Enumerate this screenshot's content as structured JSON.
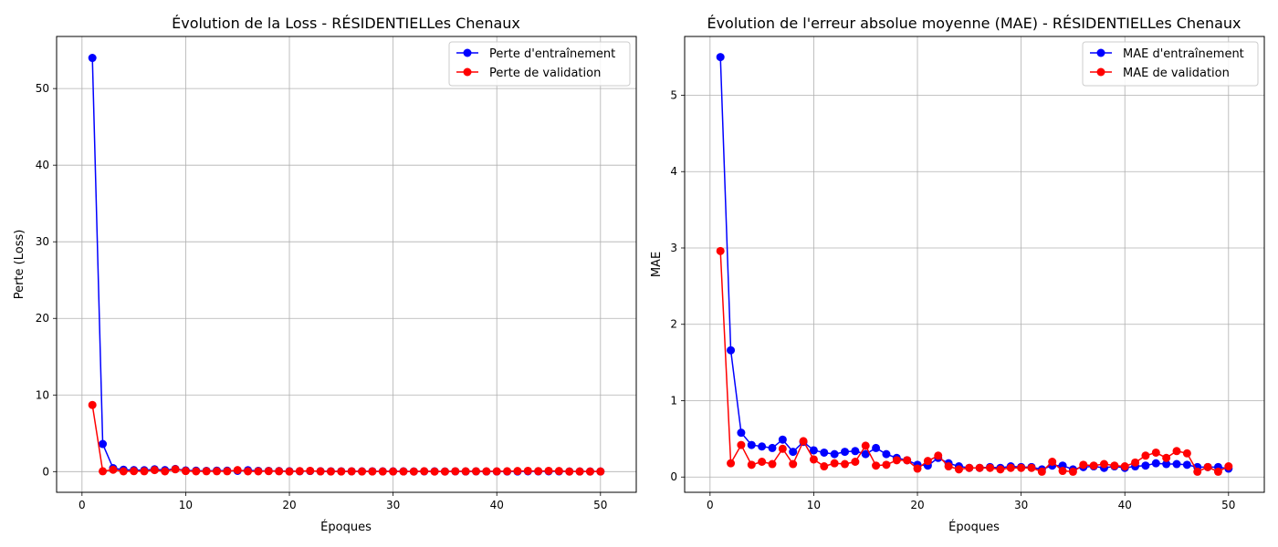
{
  "chart_data": [
    {
      "type": "line",
      "title": "Évolution de la Loss - RÉSIDENTIELLes Chenaux",
      "xlabel": "Époques",
      "ylabel": "Perte (Loss)",
      "xlim": [
        -2.45,
        53.45
      ],
      "ylim": [
        -2.7,
        56.8
      ],
      "xticks": [
        0,
        10,
        20,
        30,
        40,
        50
      ],
      "yticks": [
        0,
        10,
        20,
        30,
        40,
        50
      ],
      "grid": true,
      "legend_position": "top-right",
      "x": [
        1,
        2,
        3,
        4,
        5,
        6,
        7,
        8,
        9,
        10,
        11,
        12,
        13,
        14,
        15,
        16,
        17,
        18,
        19,
        20,
        21,
        22,
        23,
        24,
        25,
        26,
        27,
        28,
        29,
        30,
        31,
        32,
        33,
        34,
        35,
        36,
        37,
        38,
        39,
        40,
        41,
        42,
        43,
        44,
        45,
        46,
        47,
        48,
        49,
        50
      ],
      "series": [
        {
          "name": "Perte d'entraînement",
          "color": "#0000ff",
          "values": [
            54.0,
            3.6,
            0.45,
            0.25,
            0.2,
            0.18,
            0.3,
            0.2,
            0.35,
            0.15,
            0.12,
            0.1,
            0.13,
            0.12,
            0.1,
            0.18,
            0.1,
            0.1,
            0.08,
            0.05,
            0.05,
            0.08,
            0.05,
            0.04,
            0.04,
            0.04,
            0.03,
            0.04,
            0.03,
            0.03,
            0.03,
            0.02,
            0.03,
            0.03,
            0.02,
            0.03,
            0.02,
            0.03,
            0.02,
            0.02,
            0.02,
            0.02,
            0.04,
            0.03,
            0.04,
            0.03,
            0.02,
            0.02,
            0.02,
            0.02
          ]
        },
        {
          "name": "Perte de validation",
          "color": "#ff0000",
          "values": [
            8.7,
            0.05,
            0.25,
            0.04,
            0.06,
            0.05,
            0.2,
            0.04,
            0.3,
            0.08,
            0.04,
            0.05,
            0.05,
            0.05,
            0.2,
            0.04,
            0.04,
            0.06,
            0.05,
            0.02,
            0.06,
            0.1,
            0.03,
            0.02,
            0.02,
            0.03,
            0.02,
            0.02,
            0.02,
            0.02,
            0.02,
            0.01,
            0.05,
            0.01,
            0.01,
            0.04,
            0.03,
            0.04,
            0.03,
            0.03,
            0.05,
            0.08,
            0.1,
            0.06,
            0.1,
            0.08,
            0.01,
            0.02,
            0.01,
            0.02
          ]
        }
      ]
    },
    {
      "type": "line",
      "title": "Évolution de l'erreur absolue moyenne (MAE) - RÉSIDENTIELLes Chenaux",
      "xlabel": "Époques",
      "ylabel": "MAE",
      "xlim": [
        -2.45,
        53.45
      ],
      "ylim": [
        -0.2,
        5.77
      ],
      "xticks": [
        0,
        10,
        20,
        30,
        40,
        50
      ],
      "yticks": [
        0,
        1,
        2,
        3,
        4,
        5
      ],
      "grid": true,
      "legend_position": "top-right",
      "x": [
        1,
        2,
        3,
        4,
        5,
        6,
        7,
        8,
        9,
        10,
        11,
        12,
        13,
        14,
        15,
        16,
        17,
        18,
        19,
        20,
        21,
        22,
        23,
        24,
        25,
        26,
        27,
        28,
        29,
        30,
        31,
        32,
        33,
        34,
        35,
        36,
        37,
        38,
        39,
        40,
        41,
        42,
        43,
        44,
        45,
        46,
        47,
        48,
        49,
        50
      ],
      "series": [
        {
          "name": "MAE d'entraînement",
          "color": "#0000ff",
          "values": [
            5.5,
            1.66,
            0.58,
            0.42,
            0.4,
            0.38,
            0.49,
            0.33,
            0.46,
            0.35,
            0.32,
            0.3,
            0.33,
            0.34,
            0.3,
            0.38,
            0.3,
            0.25,
            0.22,
            0.16,
            0.15,
            0.25,
            0.18,
            0.14,
            0.12,
            0.12,
            0.13,
            0.12,
            0.14,
            0.13,
            0.13,
            0.1,
            0.15,
            0.15,
            0.1,
            0.13,
            0.14,
            0.12,
            0.14,
            0.12,
            0.14,
            0.15,
            0.18,
            0.17,
            0.17,
            0.16,
            0.13,
            0.13,
            0.13,
            0.11
          ]
        },
        {
          "name": "MAE de validation",
          "color": "#ff0000",
          "values": [
            2.96,
            0.18,
            0.42,
            0.16,
            0.2,
            0.17,
            0.37,
            0.17,
            0.47,
            0.23,
            0.14,
            0.18,
            0.17,
            0.2,
            0.41,
            0.15,
            0.16,
            0.22,
            0.22,
            0.11,
            0.21,
            0.28,
            0.14,
            0.1,
            0.12,
            0.12,
            0.12,
            0.1,
            0.12,
            0.12,
            0.12,
            0.07,
            0.2,
            0.08,
            0.07,
            0.16,
            0.15,
            0.17,
            0.15,
            0.14,
            0.19,
            0.28,
            0.32,
            0.25,
            0.34,
            0.31,
            0.07,
            0.13,
            0.07,
            0.14
          ]
        }
      ]
    }
  ]
}
